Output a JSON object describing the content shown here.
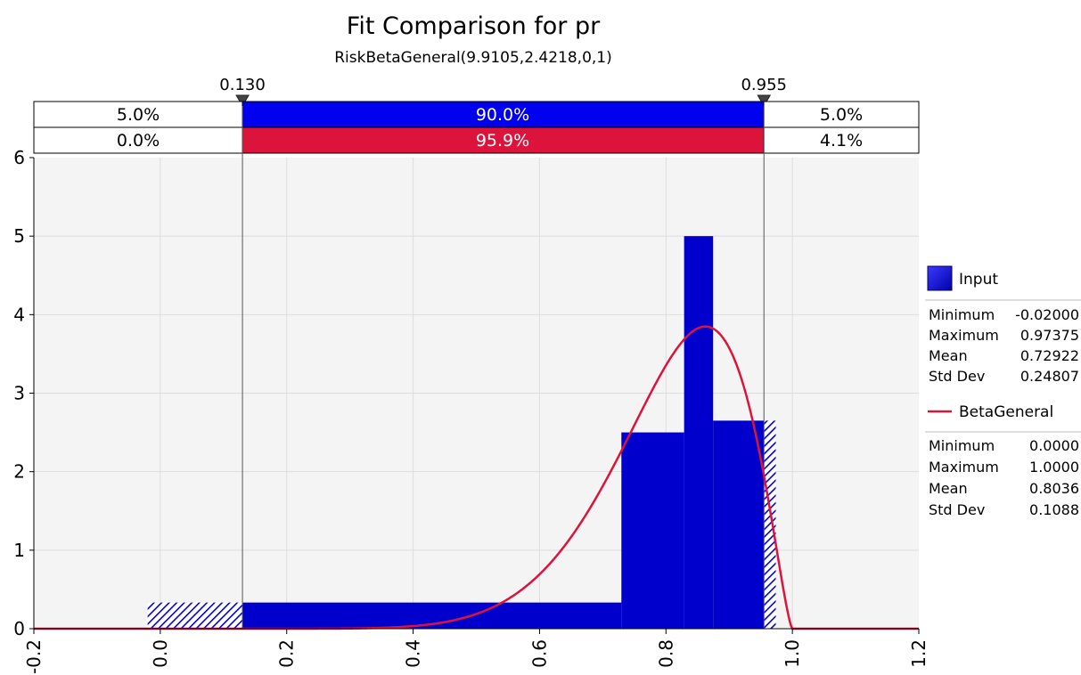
{
  "chart_data": {
    "type": "bar",
    "title": "Fit Comparison for pr",
    "subtitle": "RiskBetaGeneral(9.9105,2.4218,0,1)",
    "xlim": [
      -0.2,
      1.2
    ],
    "ylim": [
      0,
      6
    ],
    "x_ticks": [
      "-0.2",
      "0.0",
      "0.2",
      "0.4",
      "0.6",
      "0.8",
      "1.0",
      "1.2"
    ],
    "y_ticks": [
      "0",
      "1",
      "2",
      "3",
      "4",
      "5",
      "6"
    ],
    "grid": true,
    "legend_position": "right",
    "delimiters": {
      "left": 0.13,
      "right": 0.955,
      "left_label": "0.130",
      "right_label": "0.955"
    },
    "probability_bars": {
      "input": {
        "left": "5.0%",
        "middle": "90.0%",
        "right": "5.0%",
        "color": "#0000ee"
      },
      "fit": {
        "left": "0.0%",
        "middle": "95.9%",
        "right": "4.1%",
        "color": "#dc143c"
      }
    },
    "series": [
      {
        "name": "Input",
        "kind": "histogram",
        "color": "#0000cc",
        "bins": [
          {
            "x0": -0.02,
            "x1": 0.7295,
            "y": 0.333
          },
          {
            "x0": 0.7295,
            "x1": 0.8287,
            "y": 2.5
          },
          {
            "x0": 0.8287,
            "x1": 0.8746,
            "y": 5.0
          },
          {
            "x0": 0.8746,
            "x1": 0.97375,
            "y": 2.65
          }
        ],
        "stats": [
          {
            "label": "Minimum",
            "value": "-0.02000"
          },
          {
            "label": "Maximum",
            "value": "0.97375"
          },
          {
            "label": "Mean",
            "value": "0.72922"
          },
          {
            "label": "Std Dev",
            "value": "0.24807"
          }
        ]
      },
      {
        "name": "BetaGeneral",
        "kind": "density",
        "color": "#dc143c",
        "alpha": 9.9105,
        "beta": 2.4218,
        "min": 0,
        "max": 1,
        "stats": [
          {
            "label": "Minimum",
            "value": "0.0000"
          },
          {
            "label": "Maximum",
            "value": "1.0000"
          },
          {
            "label": "Mean",
            "value": "0.8036"
          },
          {
            "label": "Std Dev",
            "value": "0.1088"
          }
        ]
      }
    ]
  }
}
